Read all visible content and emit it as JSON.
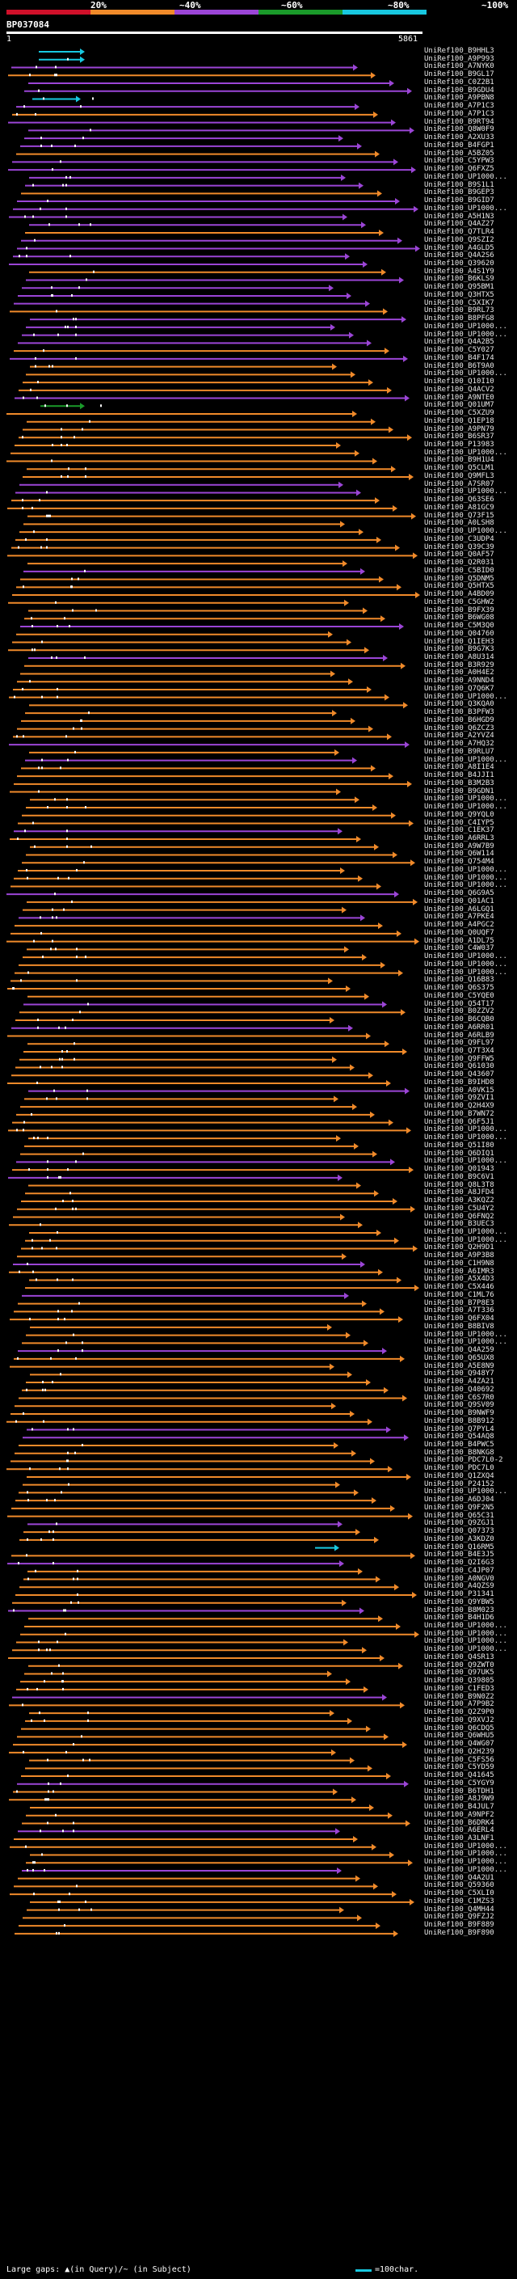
{
  "legend": {
    "labels": [
      "20%",
      "~40%",
      "~60%",
      "~80%",
      "~100%"
    ],
    "colors": [
      "#d0102a",
      "#f08a2a",
      "#9b45d6",
      "#1a9a2a",
      "#18c8e0"
    ]
  },
  "query": {
    "title": "BP037084",
    "start": "1",
    "end": "5861"
  },
  "footer": {
    "gaps_text": "Large gaps: ▲(in Query)/~ (in Subject)",
    "scale_text": "=100char."
  },
  "hits": [
    "UniRef100_B9HHL3",
    "UniRef100_A9P993",
    "UniRef100_A7NYK0",
    "UniRef100_B9GL17",
    "UniRef100_C0Z2B1",
    "UniRef100_B9GDU4",
    "UniRef100_A9PBN8",
    "UniRef100_A7P1C3",
    "UniRef100_A7P1C3",
    "UniRef100_B9RT94",
    "UniRef100_Q8W0F9",
    "UniRef100_A2XU33",
    "UniRef100_B4FGP1",
    "UniRef100_A5BZ05",
    "UniRef100_C5YPW3",
    "UniRef100_Q6FXZ5",
    "UniRef100_UP1000...",
    "UniRef100_B9S1L1",
    "UniRef100_B9GEP3",
    "UniRef100_B9GID7",
    "UniRef100_UP1000...",
    "UniRef100_A5H1N3",
    "UniRef100_Q4AZ27",
    "UniRef100_Q7TLR4",
    "UniRef100_Q9SZI2",
    "UniRef100_A4GLD5",
    "UniRef100_Q4A2S6",
    "UniRef100_Q39620",
    "UniRef100_A4S1Y9",
    "UniRef100_B6KLS9",
    "UniRef100_Q95BM1",
    "UniRef100_Q3HTX5",
    "UniRef100_C5XIK7",
    "UniRef100_B9RL73",
    "UniRef100_B8PFG8",
    "UniRef100_UP1000...",
    "UniRef100_UP1000...",
    "UniRef100_Q4A2B5",
    "UniRef100_C5Y027",
    "UniRef100_B4F174",
    "UniRef100_B6T9A0",
    "UniRef100_UP1000...",
    "UniRef100_Q10I10",
    "UniRef100_Q4ACV2",
    "UniRef100_A9NTE0",
    "UniRef100_Q01UM7",
    "UniRef100_C5XZU9",
    "UniRef100_Q1EP18",
    "UniRef100_A9PN79",
    "UniRef100_B6SR37",
    "UniRef100_P13983",
    "UniRef100_UP1000...",
    "UniRef100_B9H1U4",
    "UniRef100_Q5CLM1",
    "UniRef100_Q9MFL3",
    "UniRef100_A7SR07",
    "UniRef100_UP1000...",
    "UniRef100_Q63SE6",
    "UniRef100_A81GC9",
    "UniRef100_Q73F15",
    "UniRef100_A0LSH8",
    "UniRef100_UP1000...",
    "UniRef100_C3UDP4",
    "UniRef100_Q39C39",
    "UniRef100_Q0AF57",
    "UniRef100_Q2R031",
    "UniRef100_C5BID0",
    "UniRef100_Q5DNM5",
    "UniRef100_Q5HTX5",
    "UniRef100_A4BD09",
    "UniRef100_C5GHW2",
    "UniRef100_B9FX39",
    "UniRef100_B6WG08",
    "UniRef100_C5M3Q0",
    "UniRef100_Q04760",
    "UniRef100_Q1IEH3",
    "UniRef100_B9G7K3",
    "UniRef100_A8U314",
    "UniRef100_B3R929",
    "UniRef100_A0H4E2",
    "UniRef100_A9NND4",
    "UniRef100_Q7Q6K7",
    "UniRef100_UP1000...",
    "UniRef100_Q3KQA0",
    "UniRef100_B3PFW3",
    "UniRef100_B6HGD9",
    "UniRef100_Q6ZCZ3",
    "UniRef100_A2YVZ4",
    "UniRef100_A7HQ32",
    "UniRef100_B9RLU7",
    "UniRef100_UP1000...",
    "UniRef100_A8I1E4",
    "UniRef100_B4JJI1",
    "UniRef100_B3M2B3",
    "UniRef100_B9GDN1",
    "UniRef100_UP1000...",
    "UniRef100_UP1000...",
    "UniRef100_Q9YQL0",
    "UniRef100_C4IYP5",
    "UniRef100_C1EK37",
    "UniRef100_A6RRL3",
    "UniRef100_A9W7B9",
    "UniRef100_Q6W114",
    "UniRef100_Q754M4",
    "UniRef100_UP1000...",
    "UniRef100_UP1000...",
    "UniRef100_UP1000...",
    "UniRef100_Q6G9A5",
    "UniRef100_Q01AC1",
    "UniRef100_A6LGQ1",
    "UniRef100_A7PKE4",
    "UniRef100_A4PGC2",
    "UniRef100_Q0UQF7",
    "UniRef100_A1DL75",
    "UniRef100_C4W037",
    "UniRef100_UP1000...",
    "UniRef100_UP1000...",
    "UniRef100_UP1000...",
    "UniRef100_Q16B83",
    "UniRef100_Q6S375",
    "UniRef100_C5YQE0",
    "UniRef100_Q54T17",
    "UniRef100_B0ZZV2",
    "UniRef100_B6CQB0",
    "UniRef100_A6RR01",
    "UniRef100_A6RLB9",
    "UniRef100_Q9FL97",
    "UniRef100_Q7T3X4",
    "UniRef100_Q9FFW5",
    "UniRef100_Q61030",
    "UniRef100_Q43607",
    "UniRef100_B9IHD8",
    "UniRef100_A0VK15",
    "UniRef100_Q9ZVI1",
    "UniRef100_Q2H4X9",
    "UniRef100_B7WN72",
    "UniRef100_Q6F5J1",
    "UniRef100_UP1000...",
    "UniRef100_UP1000...",
    "UniRef100_Q51I80",
    "UniRef100_Q6DIQ1",
    "UniRef100_UP1000...",
    "UniRef100_Q01943",
    "UniRef100_B9C6V1",
    "UniRef100_Q8L3T8",
    "UniRef100_A8JFD4",
    "UniRef100_A3KQZ2",
    "UniRef100_C5U4Y2",
    "UniRef100_Q6FNQ2",
    "UniRef100_B3UEC3",
    "UniRef100_UP1000...",
    "UniRef100_UP1000...",
    "UniRef100_Q2H9D1",
    "UniRef100_A9P3B8",
    "UniRef100_C1H9N8",
    "UniRef100_A6IMR3",
    "UniRef100_A5X4D3",
    "UniRef100_C5X446",
    "UniRef100_C1ML76",
    "UniRef100_B7P8E3",
    "UniRef100_A7T336",
    "UniRef100_Q6FX04",
    "UniRef100_B8BIV8",
    "UniRef100_UP1000...",
    "UniRef100_UP1000...",
    "UniRef100_Q4A259",
    "UniRef100_Q65UX8",
    "UniRef100_A5E8N9",
    "UniRef100_Q948Y7",
    "UniRef100_A4ZA21",
    "UniRef100_Q40692",
    "UniRef100_C6S7R0",
    "UniRef100_Q9SV09",
    "UniRef100_B9NWF9",
    "UniRef100_B8B912",
    "UniRef100_Q7PYL4",
    "UniRef100_Q54AQ8",
    "UniRef100_B4PWC5",
    "UniRef100_B8NKG8",
    "UniRef100_PDC7L0-2",
    "UniRef100_PDC7L0",
    "UniRef100_Q1ZXQ4",
    "UniRef100_P24152",
    "UniRef100_UP1000...",
    "UniRef100_A6DJ04",
    "UniRef100_Q9F2N5",
    "UniRef100_Q65C31",
    "UniRef100_Q9ZGJ1",
    "UniRef100_Q07373",
    "UniRef100_A3KDZ0",
    "UniRef100_Q16RM5",
    "UniRef100_B4E3J5",
    "UniRef100_Q2I6G3",
    "UniRef100_C4JP07",
    "UniRef100_A0NGV0",
    "UniRef100_A4QZS9",
    "UniRef100_P31341",
    "UniRef100_Q9YBW5",
    "UniRef100_B8M023",
    "UniRef100_B4H1D6",
    "UniRef100_UP1000...",
    "UniRef100_UP1000...",
    "UniRef100_UP1000...",
    "UniRef100_UP1000...",
    "UniRef100_Q4SR13",
    "UniRef100_Q9ZWT0",
    "UniRef100_Q97UK5",
    "UniRef100_Q39805",
    "UniRef100_C1FED3",
    "UniRef100_B9N0Z2",
    "UniRef100_A7P9B2",
    "UniRef100_Q2Z9P0",
    "UniRef100_Q9XVJ2",
    "UniRef100_Q6CDQ5",
    "UniRef100_Q6WHU5",
    "UniRef100_Q4WG07",
    "UniRef100_Q2H239",
    "UniRef100_C5FS56",
    "UniRef100_C5YD59",
    "UniRef100_Q41645",
    "UniRef100_C5YGY9",
    "UniRef100_B6TDH1",
    "UniRef100_A8J9W9",
    "UniRef100_B4JUL7",
    "UniRef100_A9NPF2",
    "UniRef100_B6DRK4",
    "UniRef100_A6ERL4",
    "UniRef100_A3LNF1",
    "UniRef100_UP1000...",
    "UniRef100_UP1000...",
    "UniRef100_UP1000...",
    "UniRef100_UP1000...",
    "UniRef100_Q4A2U1",
    "UniRef100_Q59360",
    "UniRef100_C5XLI0",
    "UniRef100_C1MZS3",
    "UniRef100_Q4MH44",
    "UniRef100_Q9FZJ2",
    "UniRef100_B9F889",
    "UniRef100_B9F890"
  ]
}
